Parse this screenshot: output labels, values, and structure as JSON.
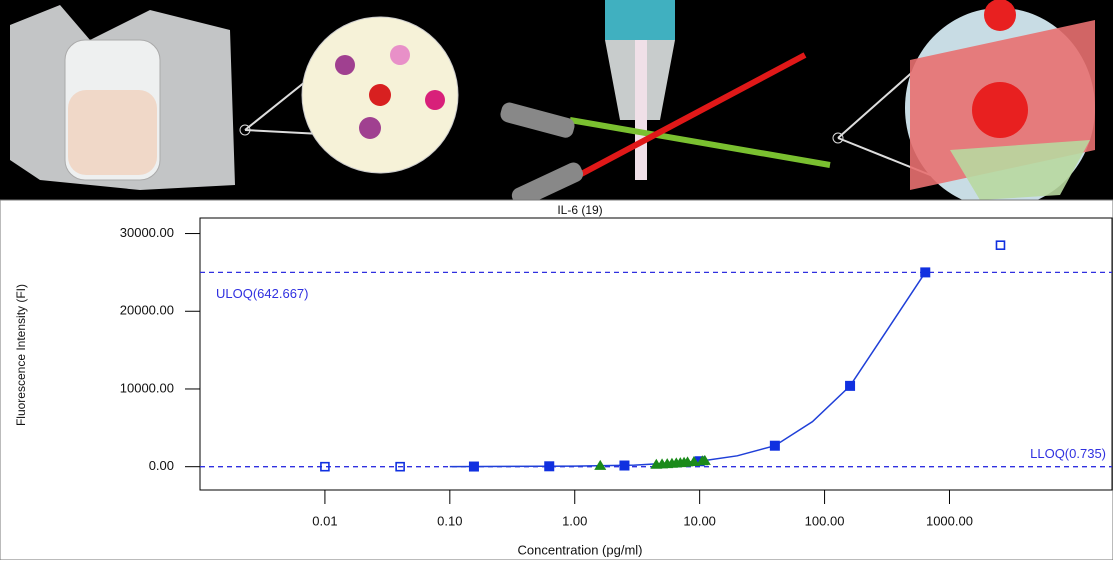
{
  "chart_data": {
    "type": "scatter",
    "title": "IL-6 (19)",
    "x_label": "Concentration (pg/ml)",
    "y_label": "Fluorescence Intensity (FI)",
    "xscale": "log",
    "xlim": [
      0.001,
      20000
    ],
    "ylim": [
      -3000,
      32000
    ],
    "xticks": [
      0.01,
      {
        "value": 0.1,
        "label": "0.10"
      },
      {
        "value": 1,
        "label": "1.00"
      },
      {
        "value": 10,
        "label": "10.00"
      },
      {
        "value": 100,
        "label": "100.00"
      },
      {
        "value": 1000,
        "label": "1000.00"
      }
    ],
    "yticks": [
      {
        "value": 0,
        "label": "0.00"
      },
      {
        "value": 10000,
        "label": "10000.00"
      },
      {
        "value": 20000,
        "label": "20000.00"
      },
      {
        "value": 30000,
        "label": "30000.00"
      }
    ],
    "hlines": [
      {
        "value": 25000,
        "label": "ULOQ(642.667)"
      },
      {
        "value": 0,
        "label": "LLOQ(0.735)"
      }
    ],
    "hline_color": "#3030e0",
    "series": [
      {
        "marker": "line",
        "color": "#1f3fd8",
        "x": [
          0.1,
          1,
          3,
          10,
          20,
          40,
          80,
          160,
          300,
          640
        ],
        "values": [
          10,
          80,
          200,
          700,
          1400,
          2700,
          5800,
          10400,
          17000,
          25000
        ]
      },
      {
        "marker": "square",
        "color": "#1030e0",
        "x": [
          0.156,
          0.625,
          2.5,
          10,
          40,
          160,
          640
        ],
        "values": [
          20,
          50,
          150,
          700,
          2700,
          10400,
          25000
        ]
      },
      {
        "marker": "open-square",
        "color": "#1030e0",
        "x": [
          0.01,
          0.04,
          2560
        ],
        "values": [
          0,
          0,
          28500
        ]
      },
      {
        "marker": "triangle",
        "color": "#1a8a1a",
        "x": [
          1.6,
          4.5,
          5,
          5.5,
          6,
          6.5,
          7,
          7.5,
          8,
          9,
          10.5,
          11
        ],
        "values": [
          100,
          250,
          300,
          330,
          380,
          420,
          460,
          500,
          550,
          600,
          700,
          750
        ]
      }
    ]
  }
}
